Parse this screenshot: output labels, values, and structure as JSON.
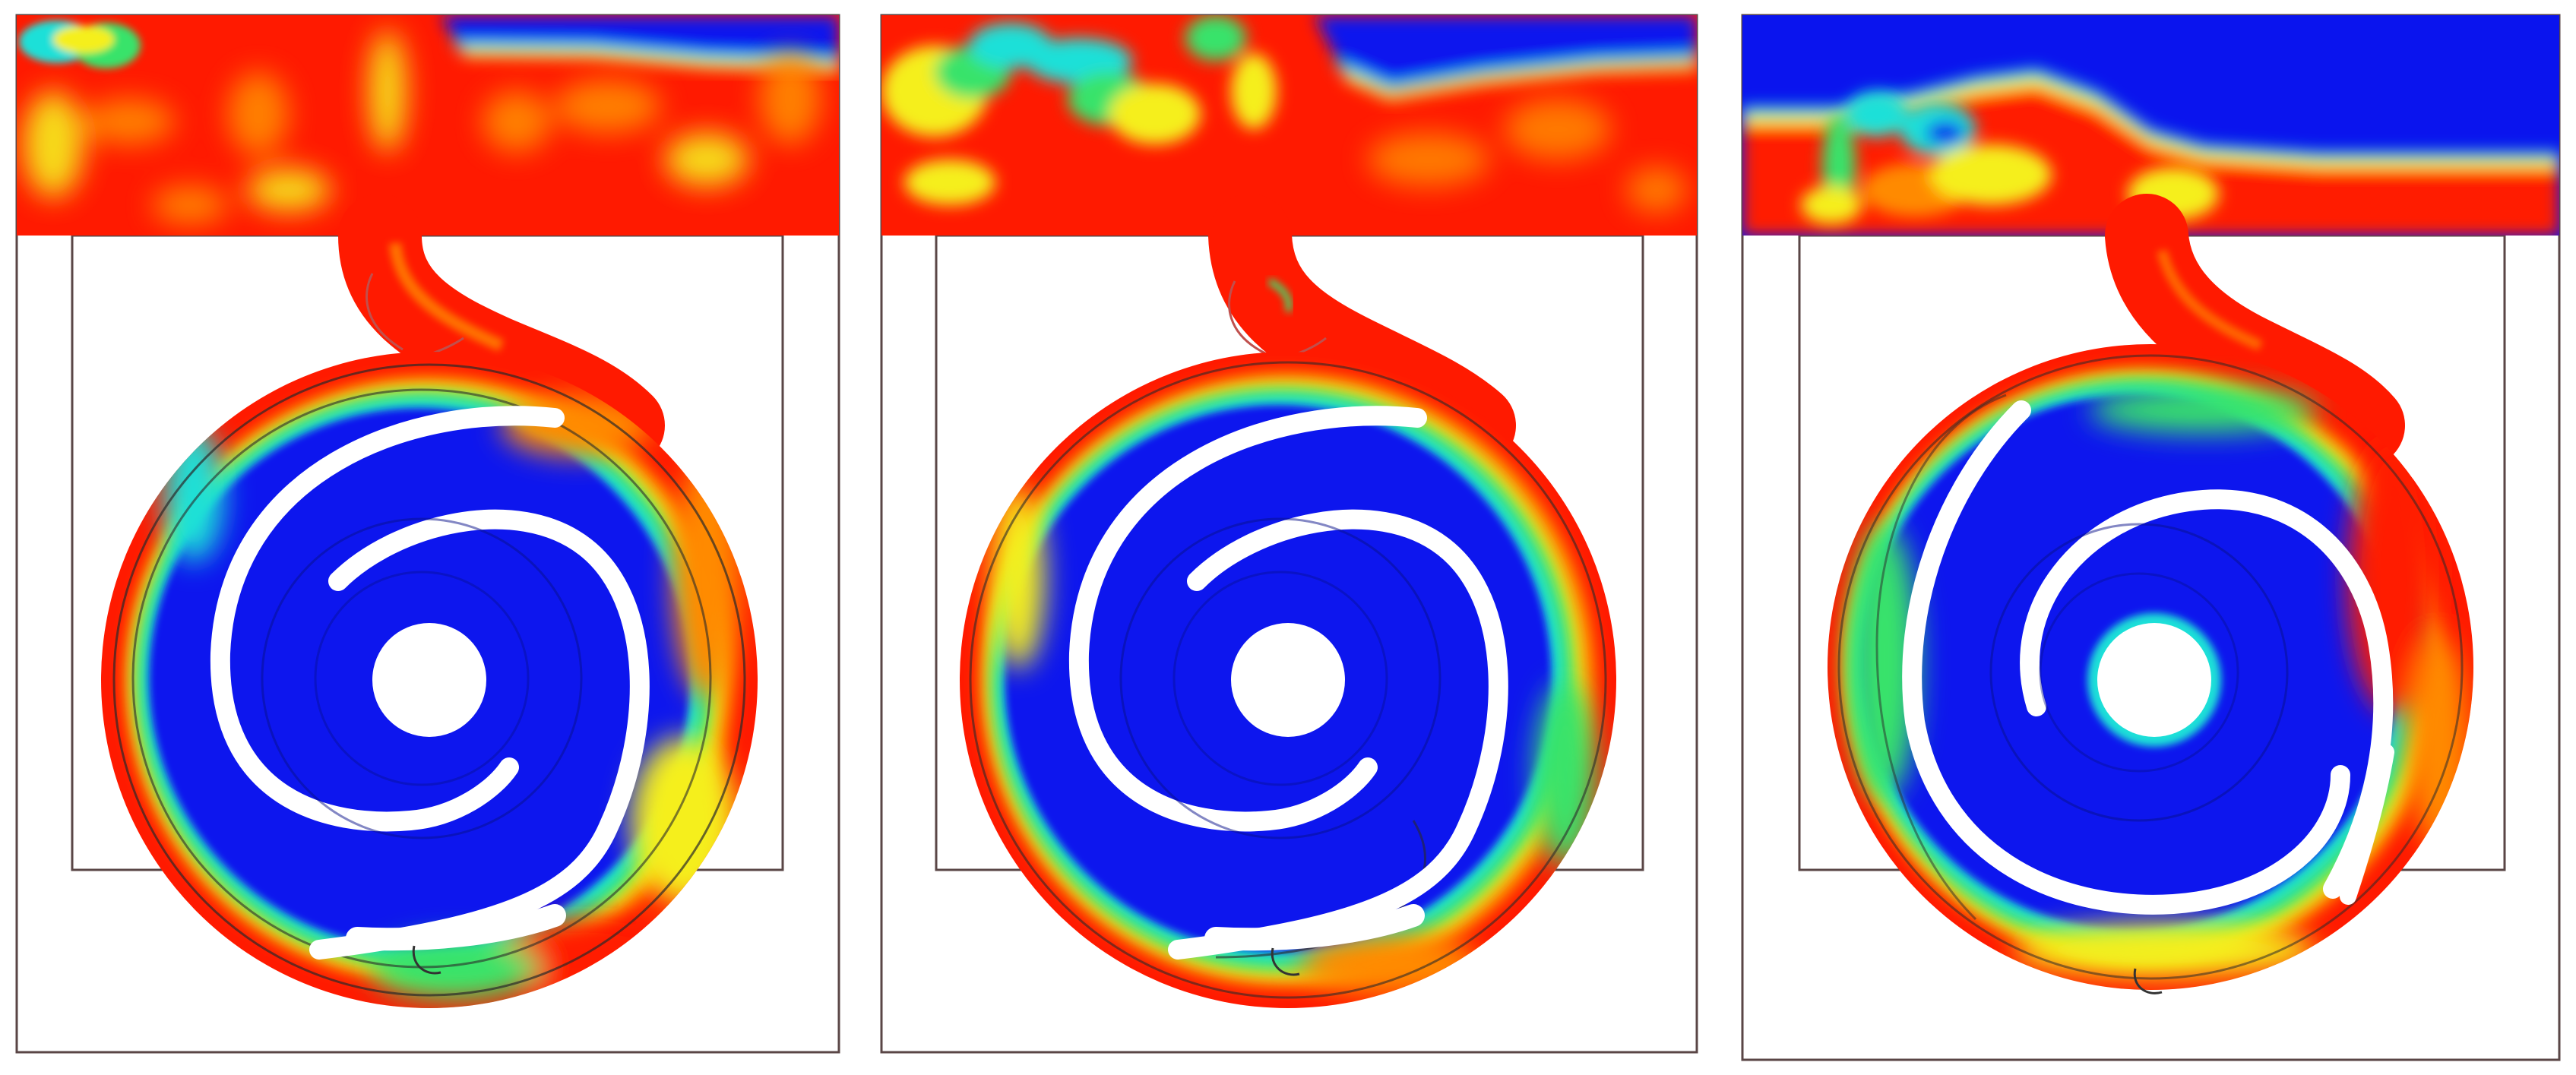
{
  "figure": {
    "panel_count": 3,
    "colors": {
      "phase_high": "#ff1a00",
      "phase_mid_orange": "#ff8a00",
      "phase_mid_yellow": "#f5ef1e",
      "phase_mid_green": "#39e36a",
      "phase_mid_cyan": "#1ee0d8",
      "phase_low": "#0a14ee",
      "blade": "#ffffff",
      "outline": "#5a4646",
      "background": "#ffffff"
    },
    "panels": [
      {
        "name": "panel-1"
      },
      {
        "name": "panel-2"
      },
      {
        "name": "panel-3"
      }
    ]
  }
}
